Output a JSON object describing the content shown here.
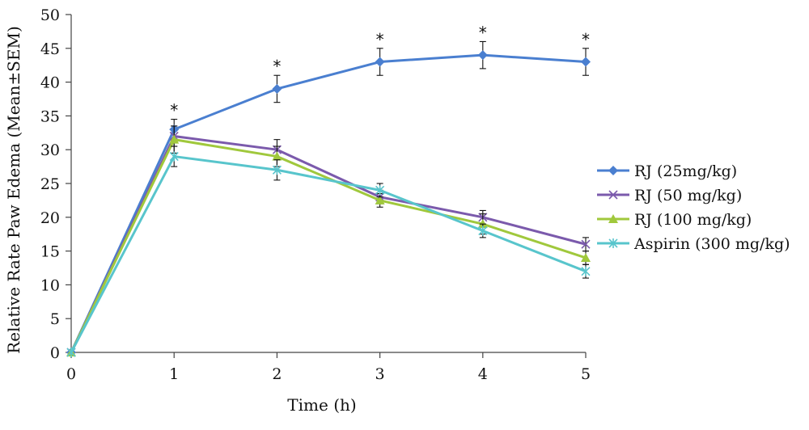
{
  "chart_data": {
    "type": "line",
    "title": "",
    "xlabel": "Time (h)",
    "ylabel": "Relative Rate Paw Edema (Mean±SEM)",
    "xlim": [
      0,
      5
    ],
    "ylim": [
      0,
      50
    ],
    "xticks": [
      "0",
      "1",
      "2",
      "3",
      "4",
      "5"
    ],
    "yticks": [
      "0",
      "5",
      "10",
      "15",
      "20",
      "25",
      "30",
      "35",
      "40",
      "45",
      "50"
    ],
    "x": [
      0,
      1,
      2,
      3,
      4,
      5
    ],
    "grid": false,
    "legend_position": "right",
    "significance_marker": "*",
    "significance_series": "RJ (25mg/kg)",
    "significance_x": [
      1,
      2,
      3,
      4,
      5
    ],
    "series": [
      {
        "name": "RJ (25mg/kg)",
        "color": "#4a7fd0",
        "marker": "diamond",
        "values": [
          0,
          33,
          39,
          43,
          44,
          43
        ],
        "errors": [
          0,
          1.5,
          2,
          2,
          2,
          2
        ]
      },
      {
        "name": "RJ (50 mg/kg)",
        "color": "#7b5aac",
        "marker": "x",
        "values": [
          0,
          32,
          30,
          23,
          20,
          16
        ],
        "errors": [
          0,
          1.5,
          1.5,
          1,
          1,
          1
        ]
      },
      {
        "name": "RJ (100 mg/kg)",
        "color": "#a0c83c",
        "marker": "triangle",
        "values": [
          0,
          31.5,
          29,
          22.5,
          19,
          14
        ],
        "errors": [
          0,
          2,
          1.5,
          1,
          1.5,
          1
        ]
      },
      {
        "name": "Aspirin (300 mg/kg)",
        "color": "#58c5cc",
        "marker": "asterisk",
        "values": [
          0,
          29,
          27,
          24,
          18,
          12
        ],
        "errors": [
          0,
          1.5,
          1.5,
          1,
          1,
          1
        ]
      }
    ]
  }
}
